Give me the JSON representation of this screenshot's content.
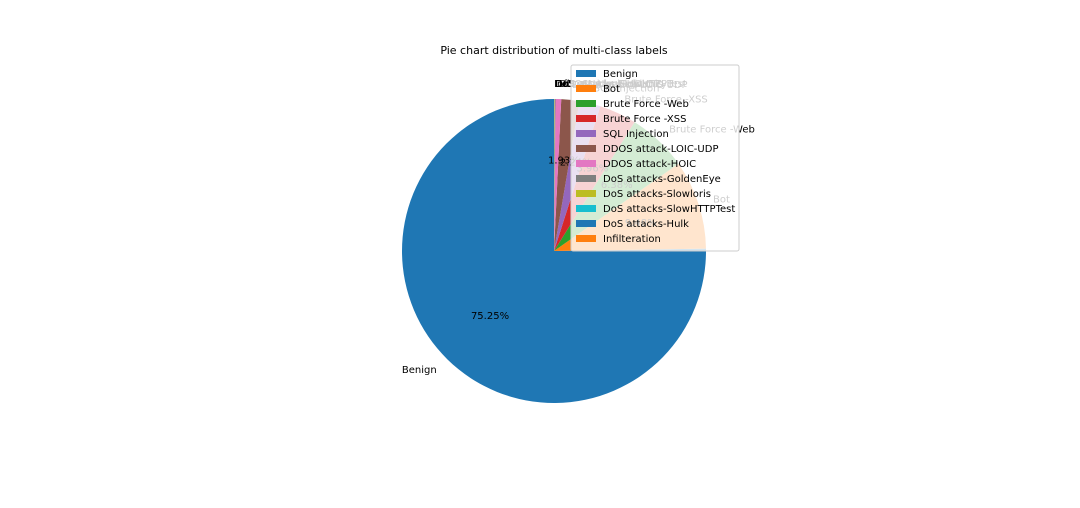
{
  "chart_data": {
    "type": "pie",
    "title": "Pie chart distribution of multi-class labels",
    "legend": {
      "placement": "top-right"
    },
    "categories": [
      "Benign",
      "Bot",
      "Brute Force -Web",
      "Brute Force -XSS",
      "SQL Injection",
      "DDOS attack-LOIC-UDP",
      "DDOS attack-HOIC",
      "DoS attacks-GoldenEye",
      "DoS attacks-Slowloris",
      "DoS attacks-SlowHTTPTest",
      "DoS attacks-Hulk",
      "Infilteration"
    ],
    "values": [
      75.25,
      9.48,
      6.38,
      3.96,
      2.24,
      1.93,
      0.6,
      0.07,
      0.03,
      0.02,
      0.02,
      0.02
    ],
    "percent_labels": [
      "75.25%",
      "9.48%",
      "6.38%",
      "3.96%",
      "2.24%",
      "1.93%",
      "",
      "",
      "",
      "",
      "",
      ""
    ],
    "colors": [
      "#1f77b4",
      "#ff7f0e",
      "#2ca02c",
      "#d62728",
      "#9467bd",
      "#8c564b",
      "#e377c2",
      "#7f7f7f",
      "#bcbd22",
      "#17becf",
      "#1f77b4",
      "#ff7f0e"
    ],
    "start_angle": 90,
    "direction": "counterclockwise"
  }
}
